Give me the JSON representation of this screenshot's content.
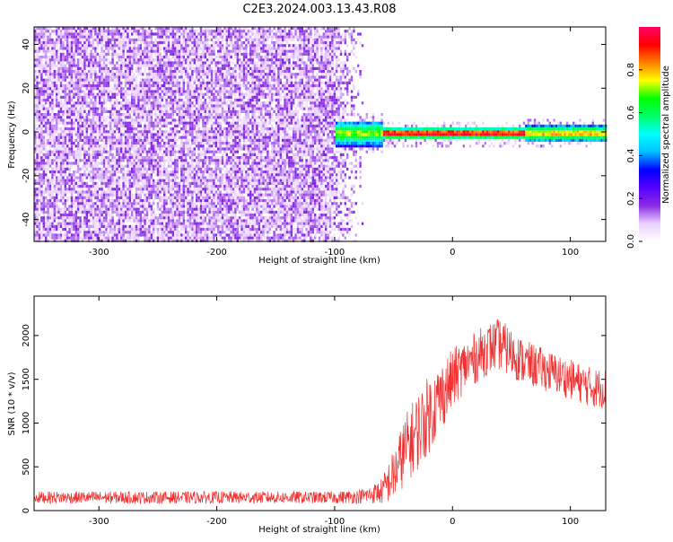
{
  "figure": {
    "title": "C2E3.2024.003.13.43.R08"
  },
  "chart_data": [
    {
      "type": "heatmap",
      "xlabel": "Height of straight line (km)",
      "ylabel": "Frequency (Hz)",
      "xlim": [
        -355,
        130
      ],
      "ylim": [
        -50,
        48
      ],
      "xticks": [
        -300,
        -200,
        -100,
        0,
        100
      ],
      "yticks": [
        -40,
        -20,
        0,
        20,
        40
      ],
      "colorbar": {
        "label": "Normalized spectral amplitude",
        "range": [
          0.0,
          1.0
        ],
        "ticks": [
          0.0,
          0.2,
          0.4,
          0.6,
          0.8
        ],
        "colormap": [
          "#ffffff",
          "#e9d0ff",
          "#8a2be2",
          "#5500ff",
          "#0000ff",
          "#00bfff",
          "#00ffff",
          "#00ff66",
          "#00ff00",
          "#ffff00",
          "#ff8000",
          "#ff0000",
          "#ff0066"
        ]
      },
      "regions": [
        {
          "name": "noise",
          "x_range": [
            -355,
            -80
          ],
          "freq_range": [
            -50,
            48
          ],
          "amplitude": 0.12
        },
        {
          "name": "signal",
          "x_range": [
            -100,
            130
          ],
          "freq_center": 0,
          "freq_halfwidth": 3,
          "amplitude_min": 0.35,
          "amplitude_max": 0.95
        }
      ],
      "grid": false
    },
    {
      "type": "line",
      "xlabel": "Height of straight line (km)",
      "ylabel": "SNR (10 * v/v)",
      "xlim": [
        -355,
        130
      ],
      "ylim": [
        0,
        2450
      ],
      "xticks": [
        -300,
        -200,
        -100,
        0,
        100
      ],
      "yticks": [
        0,
        500,
        1000,
        1500,
        2000
      ],
      "color": "#f03232",
      "series": [
        {
          "x": [
            -355,
            -300,
            -250,
            -200,
            -150,
            -100,
            -80,
            -70,
            -60,
            -50,
            -40,
            -30,
            -20,
            -10,
            0,
            10,
            20,
            30,
            40,
            50,
            60,
            70,
            80,
            90,
            100,
            110,
            120,
            130
          ],
          "y": [
            150,
            150,
            150,
            150,
            150,
            150,
            160,
            180,
            220,
            400,
            700,
            900,
            1100,
            1300,
            1500,
            1650,
            1750,
            1850,
            1900,
            1800,
            1700,
            1650,
            1600,
            1550,
            1500,
            1450,
            1400,
            1400
          ],
          "noise": [
            70,
            70,
            70,
            70,
            70,
            70,
            80,
            100,
            150,
            300,
            400,
            450,
            450,
            400,
            350,
            300,
            300,
            300,
            300,
            280,
            260,
            250,
            240,
            230,
            230,
            230,
            230,
            230
          ]
        }
      ],
      "grid": false
    }
  ]
}
